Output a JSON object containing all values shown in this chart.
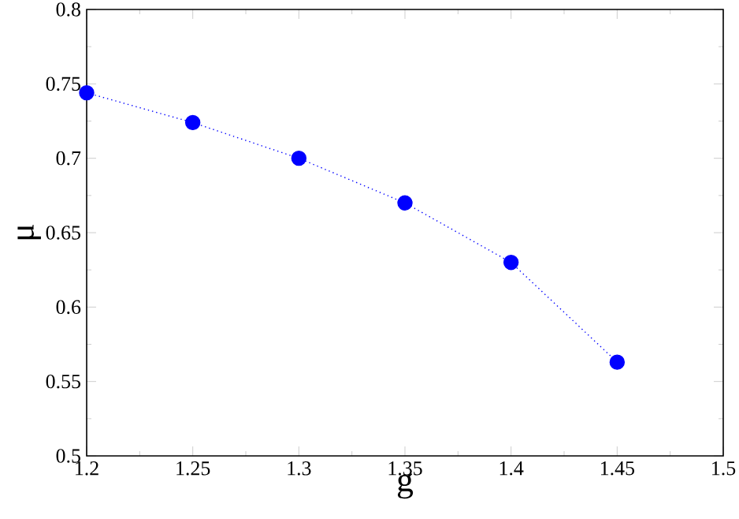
{
  "chart_data": {
    "type": "line",
    "xlabel": "g",
    "ylabel": "μ",
    "x": [
      1.2,
      1.25,
      1.3,
      1.35,
      1.4,
      1.45
    ],
    "series": [
      {
        "color": "#0000ff",
        "values": [
          0.744,
          0.724,
          0.7,
          0.67,
          0.63,
          0.563
        ]
      }
    ],
    "xlim": [
      1.2,
      1.5
    ],
    "xticks": [
      1.2,
      1.25,
      1.3,
      1.35,
      1.4,
      1.45,
      1.5
    ],
    "ylim": [
      0.5,
      0.8
    ],
    "yticks": [
      0.5,
      0.55,
      0.6,
      0.65,
      0.7,
      0.75,
      0.8
    ],
    "marker": "circle",
    "line_style": "dotted",
    "grid": false
  }
}
